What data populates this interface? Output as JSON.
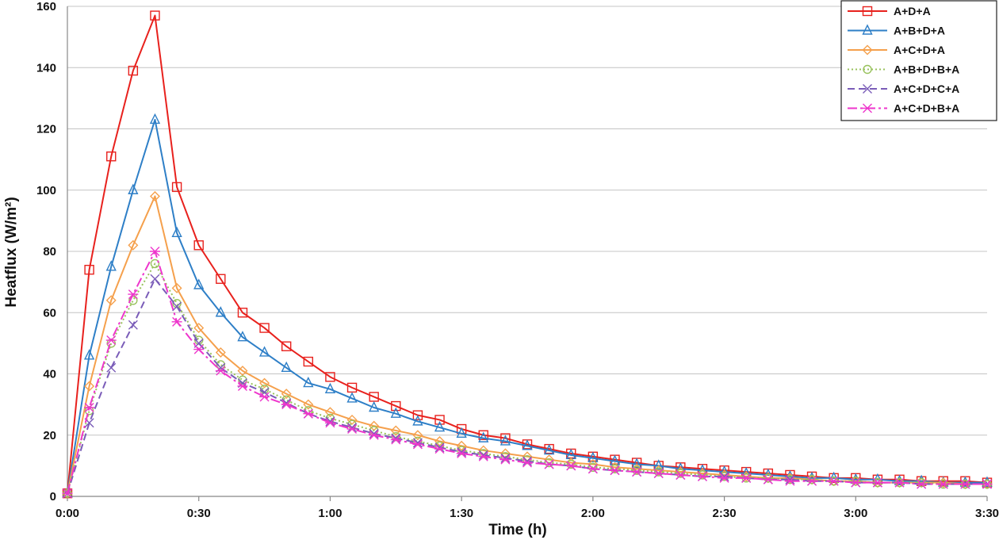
{
  "chart_data": {
    "type": "line",
    "xlabel": "Time (h)",
    "ylabel": "Heatflux (W/m²)",
    "x_unit": "hours",
    "xlim": [
      0,
      3.5
    ],
    "ylim": [
      0,
      160
    ],
    "yticks": [
      0,
      20,
      40,
      60,
      80,
      100,
      120,
      140,
      160
    ],
    "xticks": [
      {
        "value": 0,
        "label": "0:00"
      },
      {
        "value": 0.5,
        "label": "0:30"
      },
      {
        "value": 1.0,
        "label": "1:00"
      },
      {
        "value": 1.5,
        "label": "1:30"
      },
      {
        "value": 2.0,
        "label": "2:00"
      },
      {
        "value": 2.5,
        "label": "2:30"
      },
      {
        "value": 3.0,
        "label": "3:00"
      },
      {
        "value": 3.5,
        "label": "3:30"
      }
    ],
    "grid": "horizontal",
    "legend_position": "top-right",
    "x": [
      0,
      0.0833,
      0.1667,
      0.25,
      0.3333,
      0.4167,
      0.5,
      0.5833,
      0.6667,
      0.75,
      0.8333,
      0.9167,
      1.0,
      1.0833,
      1.1667,
      1.25,
      1.3333,
      1.4167,
      1.5,
      1.5833,
      1.6667,
      1.75,
      1.8333,
      1.9167,
      2.0,
      2.0833,
      2.1667,
      2.25,
      2.3333,
      2.4167,
      2.5,
      2.5833,
      2.6667,
      2.75,
      2.8333,
      2.9167,
      3.0,
      3.0833,
      3.1667,
      3.25,
      3.3333,
      3.4167,
      3.5
    ],
    "series": [
      {
        "name": "A+D+A",
        "color": "#e8211d",
        "marker": "square",
        "dash": "",
        "values": [
          1,
          74,
          111,
          139,
          157,
          101,
          82,
          71,
          60,
          55,
          49,
          44,
          39,
          35.5,
          32.5,
          29.5,
          26.5,
          25,
          22,
          20,
          19,
          17,
          15.5,
          14,
          13,
          12,
          11,
          10,
          9.5,
          9,
          8.5,
          8,
          7.5,
          7,
          6.5,
          6,
          6,
          5.5,
          5.5,
          5,
          5,
          5,
          4.5
        ]
      },
      {
        "name": "A+B+D+A",
        "color": "#2e7fc7",
        "marker": "triangle",
        "dash": "",
        "values": [
          1,
          46,
          75,
          100,
          123,
          86,
          69,
          60,
          52,
          47,
          42,
          37,
          35,
          32,
          29,
          27,
          24.5,
          22.5,
          20.5,
          19,
          18,
          16.5,
          15,
          13.5,
          12.5,
          11.5,
          10.5,
          10,
          9,
          8.5,
          8,
          7.5,
          7,
          6.5,
          6,
          6,
          5.5,
          5.5,
          5,
          5,
          4.5,
          4.5,
          4.5
        ]
      },
      {
        "name": "A+C+D+A",
        "color": "#f5a04c",
        "marker": "diamond",
        "dash": "",
        "values": [
          1,
          36,
          64,
          82,
          98,
          68,
          55,
          47,
          41,
          37,
          33.5,
          30,
          27.5,
          25,
          23,
          21.5,
          20,
          18,
          16.5,
          15,
          14,
          13,
          12,
          11,
          10.5,
          9.5,
          9,
          8.5,
          8,
          7.5,
          7,
          6.5,
          6,
          6,
          5.5,
          5,
          5,
          4.5,
          4.5,
          4.5,
          4.5,
          4,
          4
        ]
      },
      {
        "name": "A+B+D+B+A",
        "color": "#98c25c",
        "marker": "circle",
        "dash": "2,3",
        "values": [
          1,
          28,
          50,
          64,
          76,
          63,
          51,
          43,
          38,
          35,
          31.5,
          28,
          25.5,
          23.5,
          21.5,
          19.5,
          18,
          16.5,
          15,
          14,
          13,
          12,
          11,
          10.5,
          9.5,
          9,
          8.5,
          8,
          7.5,
          7,
          6.5,
          6,
          6,
          5.5,
          5.5,
          5,
          5,
          4.5,
          4.5,
          4.5,
          4,
          4,
          4
        ]
      },
      {
        "name": "A+C+D+C+A",
        "color": "#7a5cb8",
        "marker": "x",
        "dash": "9,5",
        "values": [
          1,
          24,
          42,
          56,
          71,
          62,
          50,
          42,
          37,
          34,
          30.5,
          27,
          24.5,
          22.5,
          20.5,
          19,
          17.5,
          16,
          14.5,
          13.5,
          12.5,
          11.5,
          10.5,
          10,
          9,
          8.5,
          8,
          7.5,
          7,
          6.5,
          6.5,
          6,
          5.5,
          5.5,
          5,
          5,
          4.5,
          4.5,
          4.5,
          4,
          4,
          4,
          4
        ]
      },
      {
        "name": "A+C+D+B+A",
        "color": "#ee36cc",
        "marker": "star",
        "dash": "12,4,3,4",
        "values": [
          1,
          29,
          51,
          66,
          80,
          57,
          48,
          41,
          36,
          32.5,
          30,
          27,
          24,
          22,
          20,
          18.5,
          17,
          15.5,
          14,
          13,
          12,
          11,
          10.5,
          10,
          9,
          8.5,
          8,
          7.5,
          7,
          6.5,
          6,
          6,
          5.5,
          5,
          5,
          5,
          4.5,
          4.5,
          4.5,
          4,
          4,
          4,
          4
        ]
      }
    ]
  }
}
